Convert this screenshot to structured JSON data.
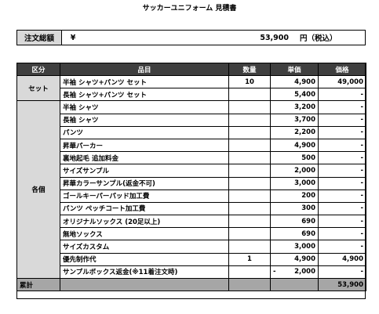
{
  "title": "サッカーユニフォーム 見積書",
  "summary": {
    "label": "注文総額",
    "currency": "¥",
    "amount": "53,900",
    "unit": "円（税込）"
  },
  "table": {
    "headers": [
      "区分",
      "品目",
      "数量",
      "単価",
      "価格"
    ],
    "groups": [
      {
        "category": "セット",
        "rows": [
          {
            "item": "半袖 シャツ+パンツ セット",
            "qty": "10",
            "unit_price": "4,900",
            "price": "49,000"
          },
          {
            "item": "長袖 シャツ+パンツ セット",
            "qty": "",
            "unit_price": "5,400",
            "price": "-"
          }
        ]
      },
      {
        "category": "各個",
        "rows": [
          {
            "item": "半袖 シャツ",
            "qty": "",
            "unit_price": "3,200",
            "price": "-"
          },
          {
            "item": "長袖 シャツ",
            "qty": "",
            "unit_price": "3,700",
            "price": "-"
          },
          {
            "item": "パンツ",
            "qty": "",
            "unit_price": "2,200",
            "price": "-"
          },
          {
            "item": "昇華パーカー",
            "qty": "",
            "unit_price": "4,900",
            "price": "-"
          },
          {
            "item": "裏地起毛 追加料金",
            "qty": "",
            "unit_price": "500",
            "price": "-"
          },
          {
            "item": "サイズサンプル",
            "qty": "",
            "unit_price": "2,000",
            "price": "-"
          },
          {
            "item": "昇華カラーサンプル(返金不可)",
            "qty": "",
            "unit_price": "3,000",
            "price": "-"
          },
          {
            "item": "ゴールキーパーパッド加工費",
            "qty": "",
            "unit_price": "200",
            "price": "-"
          },
          {
            "item": "パンツ ペッチコート加工費",
            "qty": "",
            "unit_price": "300",
            "price": "-"
          },
          {
            "item": "オリジナルソックス (20足以上)",
            "qty": "",
            "unit_price": "690",
            "price": "-"
          },
          {
            "item": "無地ソックス",
            "qty": "",
            "unit_price": "690",
            "price": "-"
          },
          {
            "item": "サイズカスタム",
            "qty": "",
            "unit_price": "3,000",
            "price": "-"
          },
          {
            "item": "優先制作代",
            "qty": "1",
            "unit_price": "4,900",
            "price": "4,900"
          },
          {
            "item": "サンプルボックス返金(※11着注文時)",
            "qty": "",
            "unit_price_sign": "-",
            "unit_price": "2,000",
            "price": "-"
          }
        ]
      }
    ],
    "total": {
      "label": "累計",
      "price": "53,900"
    }
  }
}
